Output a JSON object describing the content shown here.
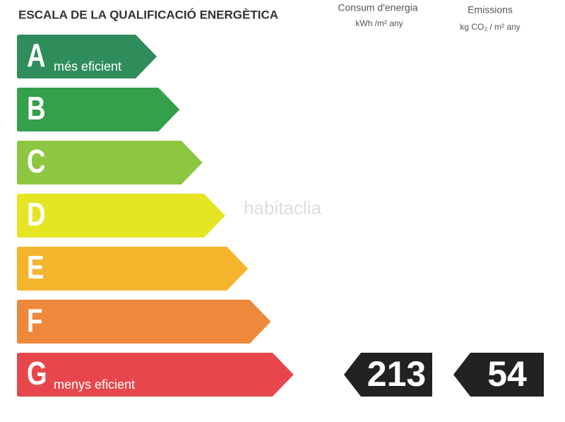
{
  "title": "ESCALA DE LA QUALIFICACIÓ ENERGÈTICA",
  "headers": [
    {
      "title": "Consum d'energia",
      "unit": "kWh /m² any"
    },
    {
      "title": "Emissions",
      "unit": "kg CO₂ / m² any"
    }
  ],
  "ratings": [
    {
      "letter": "A",
      "note": "més eficient",
      "color": "#2f8d5c"
    },
    {
      "letter": "B",
      "color": "#34a04a"
    },
    {
      "letter": "C",
      "color": "#8dc641"
    },
    {
      "letter": "D",
      "color": "#e6e523"
    },
    {
      "letter": "E",
      "color": "#f4b42c"
    },
    {
      "letter": "F",
      "color": "#ee883b"
    },
    {
      "letter": "G",
      "note": "menys eficient",
      "color": "#e7474c"
    }
  ],
  "values": {
    "energy": 213,
    "emissions": 54
  },
  "watermark": "habitaclia"
}
